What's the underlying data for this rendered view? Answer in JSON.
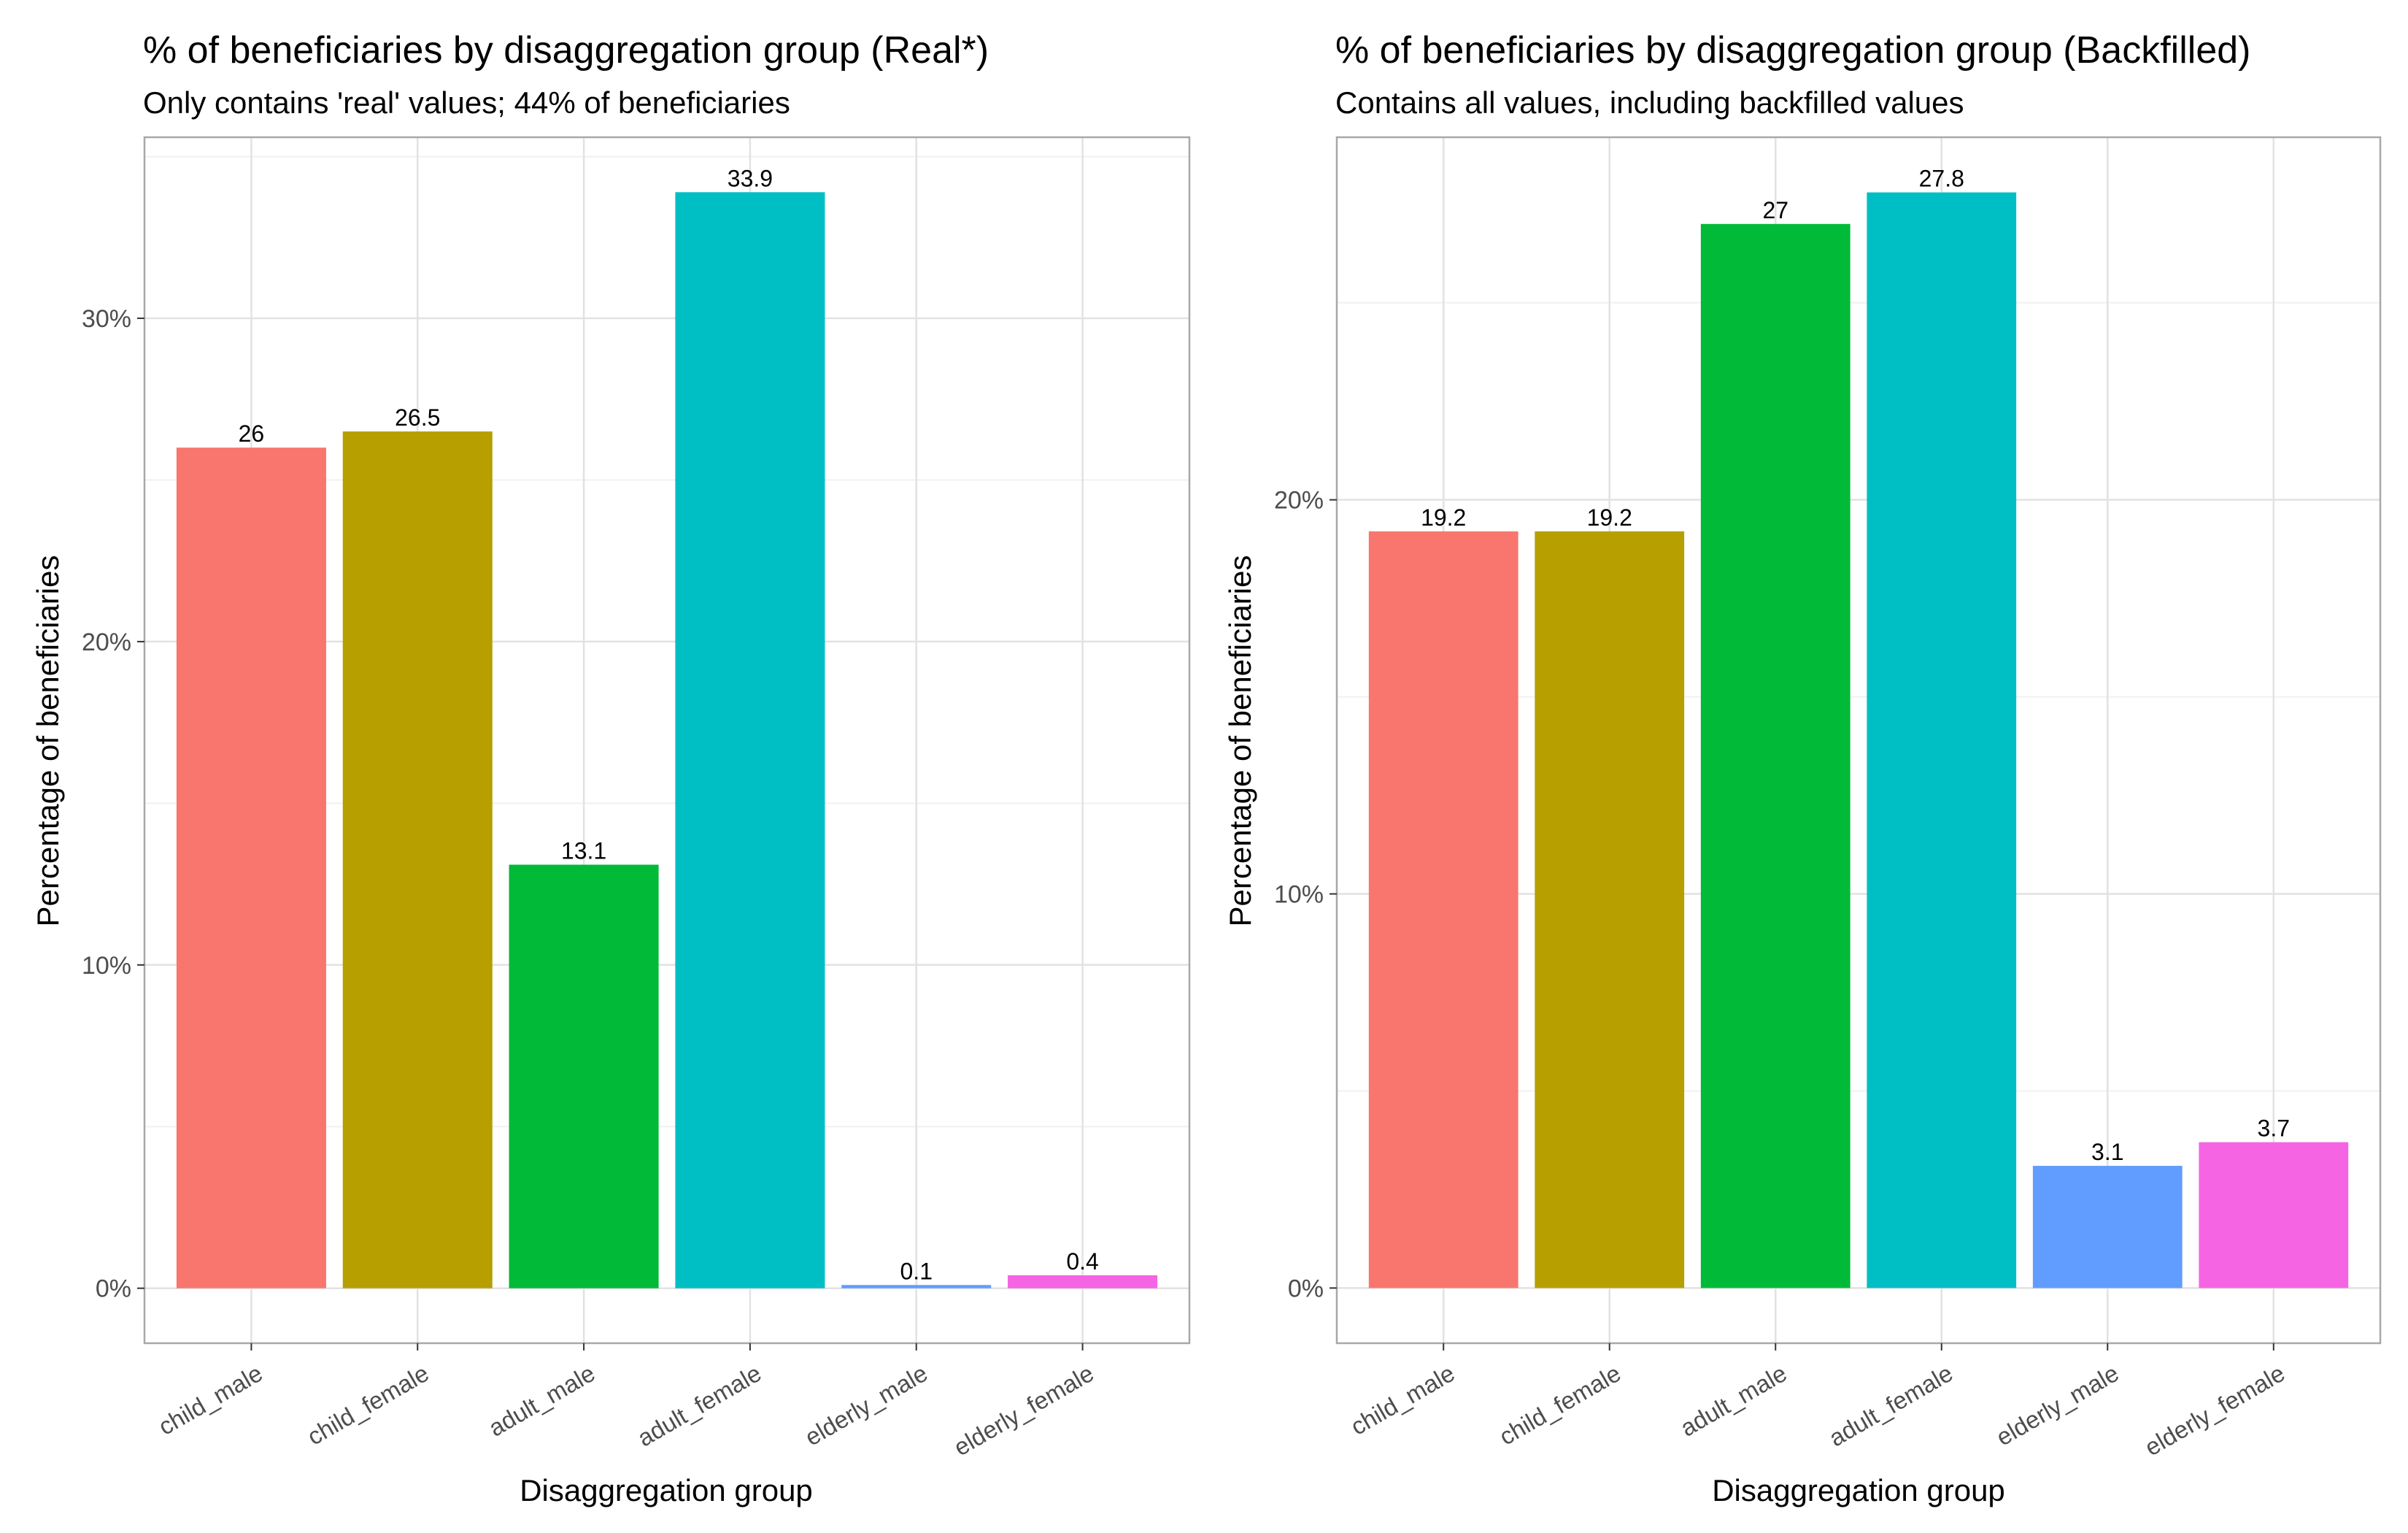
{
  "chart_data": [
    {
      "type": "bar",
      "title": "% of beneficiaries by disaggregation group (Real*)",
      "subtitle": "Only contains 'real' values; 44% of beneficiaries",
      "xlabel": "Disaggregation group",
      "ylabel": "Percentage of beneficiaries",
      "categories": [
        "child_male",
        "child_female",
        "adult_male",
        "adult_female",
        "elderly_male",
        "elderly_female"
      ],
      "values": [
        26,
        26.5,
        13.1,
        33.9,
        0.1,
        0.4
      ],
      "value_labels": [
        "26",
        "26.5",
        "13.1",
        "33.9",
        "0.1",
        "0.4"
      ],
      "colors": [
        "#F8766D",
        "#B79F00",
        "#00BA38",
        "#00BFC4",
        "#619CFF",
        "#F564E3"
      ],
      "ylim": [
        -1.7,
        35.6
      ],
      "yticks": [
        0,
        10,
        20,
        30
      ],
      "ytick_labels": [
        "0%",
        "10%",
        "20%",
        "30%"
      ],
      "grid": true,
      "legend": "none"
    },
    {
      "type": "bar",
      "title": "% of beneficiaries by disaggregation group (Backfilled)",
      "subtitle": "Contains all values, including backfilled values",
      "xlabel": "Disaggregation group",
      "ylabel": "Percentage of beneficiaries",
      "categories": [
        "child_male",
        "child_female",
        "adult_male",
        "adult_female",
        "elderly_male",
        "elderly_female"
      ],
      "values": [
        19.2,
        19.2,
        27,
        27.8,
        3.1,
        3.7
      ],
      "value_labels": [
        "19.2",
        "19.2",
        "27",
        "27.8",
        "3.1",
        "3.7"
      ],
      "colors": [
        "#F8766D",
        "#B79F00",
        "#00BA38",
        "#00BFC4",
        "#619CFF",
        "#F564E3"
      ],
      "ylim": [
        -1.4,
        29.2
      ],
      "yticks": [
        0,
        10,
        20
      ],
      "ytick_labels": [
        "0%",
        "10%",
        "20%"
      ],
      "grid": true,
      "legend": "none"
    }
  ]
}
